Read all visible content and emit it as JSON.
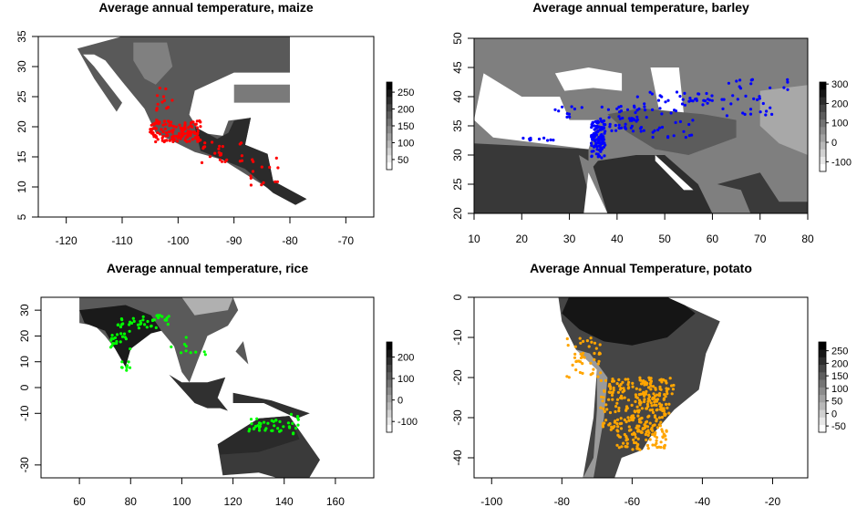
{
  "chart_data": [
    {
      "type": "map",
      "title": "Average annual temperature, maize",
      "xlim": [
        -125,
        -65
      ],
      "ylim": [
        5,
        35
      ],
      "x_ticks": [
        -120,
        -110,
        -100,
        -90,
        -80,
        -70
      ],
      "y_ticks": [
        5,
        10,
        15,
        20,
        25,
        30,
        35
      ],
      "legend": {
        "values": [
          50,
          100,
          150,
          200,
          250
        ],
        "range": [
          20,
          280
        ]
      },
      "point_color": "#ff0000",
      "occurrence_regions": [
        {
          "lon": [
            -105,
            -96
          ],
          "lat": [
            17.5,
            21
          ],
          "n": 150
        },
        {
          "lon": [
            -104,
            -101
          ],
          "lat": [
            21,
            26.5
          ],
          "n": 14
        },
        {
          "lon": [
            -96,
            -88
          ],
          "lat": [
            14,
            17.5
          ],
          "n": 24
        },
        {
          "lon": [
            -88,
            -82
          ],
          "lat": [
            9,
            15
          ],
          "n": 14
        }
      ]
    },
    {
      "type": "map",
      "title": "Average annual temperature, barley",
      "xlim": [
        10,
        80
      ],
      "ylim": [
        20,
        50
      ],
      "x_ticks": [
        10,
        20,
        30,
        40,
        50,
        60,
        70,
        80
      ],
      "y_ticks": [
        20,
        25,
        30,
        35,
        40,
        45,
        50
      ],
      "legend": {
        "values": [
          -100,
          0,
          100,
          200,
          300
        ],
        "range": [
          -150,
          310
        ]
      },
      "point_color": "#0000ff",
      "occurrence_regions": [
        {
          "lon": [
            34.5,
            37.5
          ],
          "lat": [
            29.5,
            36
          ],
          "n": 110
        },
        {
          "lon": [
            36,
            46
          ],
          "lat": [
            34,
            38.5
          ],
          "n": 50
        },
        {
          "lon": [
            44,
            56
          ],
          "lat": [
            33,
            41
          ],
          "n": 40
        },
        {
          "lon": [
            55,
            60
          ],
          "lat": [
            38,
            41
          ],
          "n": 18
        },
        {
          "lon": [
            62,
            76
          ],
          "lat": [
            36,
            43
          ],
          "n": 35
        },
        {
          "lon": [
            26,
            33
          ],
          "lat": [
            36.5,
            38.5
          ],
          "n": 10
        },
        {
          "lon": [
            20,
            27
          ],
          "lat": [
            32.5,
            33
          ],
          "n": 10
        }
      ]
    },
    {
      "type": "map",
      "title": "Average annual temperature, rice",
      "xlim": [
        45,
        175
      ],
      "ylim": [
        -35,
        35
      ],
      "x_ticks": [
        60,
        80,
        100,
        120,
        140,
        160
      ],
      "y_ticks": [
        -30,
        -10,
        0,
        10,
        20,
        30
      ],
      "legend": {
        "values": [
          -100,
          0,
          100,
          200
        ],
        "range": [
          -150,
          270
        ]
      },
      "point_color": "#00ff00",
      "occurrence_regions": [
        {
          "lon": [
            75,
            95
          ],
          "lat": [
            23,
            28
          ],
          "n": 40
        },
        {
          "lon": [
            72,
            80
          ],
          "lat": [
            15,
            22
          ],
          "n": 20
        },
        {
          "lon": [
            76,
            80
          ],
          "lat": [
            6,
            10
          ],
          "n": 8
        },
        {
          "lon": [
            125,
            140
          ],
          "lat": [
            -17,
            -12
          ],
          "n": 30
        },
        {
          "lon": [
            140,
            146
          ],
          "lat": [
            -18,
            -10
          ],
          "n": 12
        },
        {
          "lon": [
            95,
            110
          ],
          "lat": [
            12,
            20
          ],
          "n": 10
        }
      ]
    },
    {
      "type": "map",
      "title": "Average Annual Temperature, potato",
      "xlim": [
        -105,
        -10
      ],
      "ylim": [
        -45,
        0
      ],
      "x_ticks": [
        -100,
        -80,
        -60,
        -40,
        -20
      ],
      "y_ticks": [
        -40,
        -30,
        -20,
        -10,
        0
      ],
      "legend": {
        "values": [
          -50,
          0,
          50,
          100,
          150,
          200,
          250
        ],
        "range": [
          -75,
          285
        ]
      },
      "point_color": "#ffa500",
      "occurrence_regions": [
        {
          "lon": [
            -79,
            -69
          ],
          "lat": [
            -20,
            -10
          ],
          "n": 45
        },
        {
          "lon": [
            -69,
            -65
          ],
          "lat": [
            -33,
            -20
          ],
          "n": 40
        },
        {
          "lon": [
            -65,
            -50
          ],
          "lat": [
            -38,
            -20
          ],
          "n": 260
        },
        {
          "lon": [
            -58,
            -48
          ],
          "lat": [
            -30,
            -20
          ],
          "n": 40
        }
      ]
    }
  ]
}
